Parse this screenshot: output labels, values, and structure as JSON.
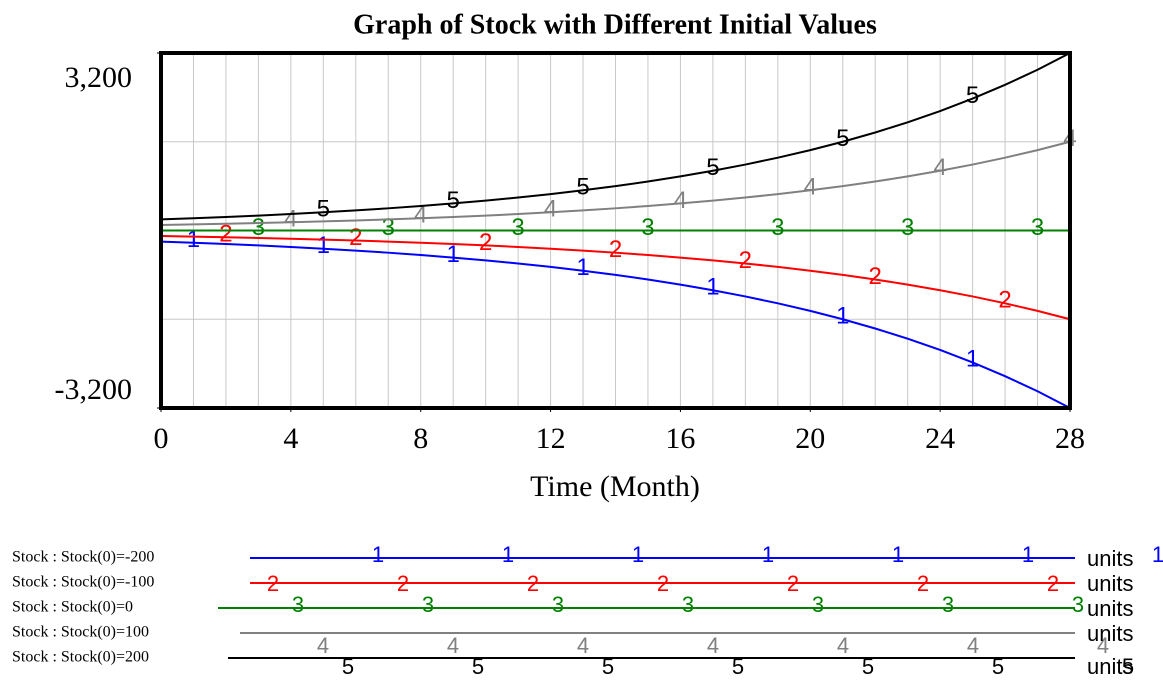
{
  "chart_data": {
    "type": "line",
    "title": "Graph of Stock with Different Initial Values",
    "x_label": "Time (Month)",
    "units": "units",
    "x": [
      0,
      1,
      2,
      3,
      4,
      5,
      6,
      7,
      8,
      9,
      10,
      11,
      12,
      13,
      14,
      15,
      16,
      17,
      18,
      19,
      20,
      21,
      22,
      23,
      24,
      25,
      26,
      27,
      28
    ],
    "xlim": [
      0,
      28
    ],
    "xticks": [
      0,
      4,
      8,
      12,
      16,
      20,
      24,
      28
    ],
    "ylim": [
      -3200,
      3200
    ],
    "yticks": [
      {
        "value": -3200,
        "label": "-3,200"
      },
      {
        "value": 3200,
        "label": "3,200"
      }
    ],
    "ygrid": [
      -1600,
      0,
      1600
    ],
    "grid": true,
    "series": [
      {
        "name": "Stock : Stock(0)=-200",
        "marker": "1",
        "color": "#0000ff",
        "values": [
          -200,
          -221,
          -244,
          -269,
          -297,
          -328,
          -362,
          -400,
          -442,
          -488,
          -538,
          -594,
          -656,
          -725,
          -800,
          -883,
          -975,
          -1077,
          -1189,
          -1313,
          -1449,
          -1600,
          -1767,
          -1950,
          -2154,
          -2378,
          -2626,
          -2898,
          -3200
        ]
      },
      {
        "name": "Stock : Stock(0)=-100",
        "marker": "2",
        "color": "#ff0000",
        "values": [
          -100,
          -110,
          -122,
          -135,
          -149,
          -164,
          -181,
          -200,
          -221,
          -244,
          -269,
          -297,
          -328,
          -362,
          -400,
          -442,
          -488,
          -538,
          -594,
          -656,
          -725,
          -800,
          -883,
          -975,
          -1077,
          -1189,
          -1313,
          -1449,
          -1600
        ]
      },
      {
        "name": "Stock : Stock(0)=0",
        "marker": "3",
        "color": "#008000",
        "values": [
          0,
          0,
          0,
          0,
          0,
          0,
          0,
          0,
          0,
          0,
          0,
          0,
          0,
          0,
          0,
          0,
          0,
          0,
          0,
          0,
          0,
          0,
          0,
          0,
          0,
          0,
          0,
          0,
          0
        ]
      },
      {
        "name": "Stock : Stock(0)=100",
        "marker": "4",
        "color": "#808080",
        "values": [
          100,
          110,
          122,
          135,
          149,
          164,
          181,
          200,
          221,
          244,
          269,
          297,
          328,
          362,
          400,
          442,
          488,
          538,
          594,
          656,
          725,
          800,
          883,
          975,
          1077,
          1189,
          1313,
          1449,
          1600
        ]
      },
      {
        "name": "Stock : Stock(0)=200",
        "marker": "5",
        "color": "#000000",
        "values": [
          200,
          221,
          244,
          269,
          297,
          328,
          362,
          400,
          442,
          488,
          538,
          594,
          656,
          725,
          800,
          883,
          975,
          1077,
          1189,
          1313,
          1449,
          1600,
          1767,
          1950,
          2154,
          2378,
          2626,
          2898,
          3200
        ]
      }
    ]
  }
}
